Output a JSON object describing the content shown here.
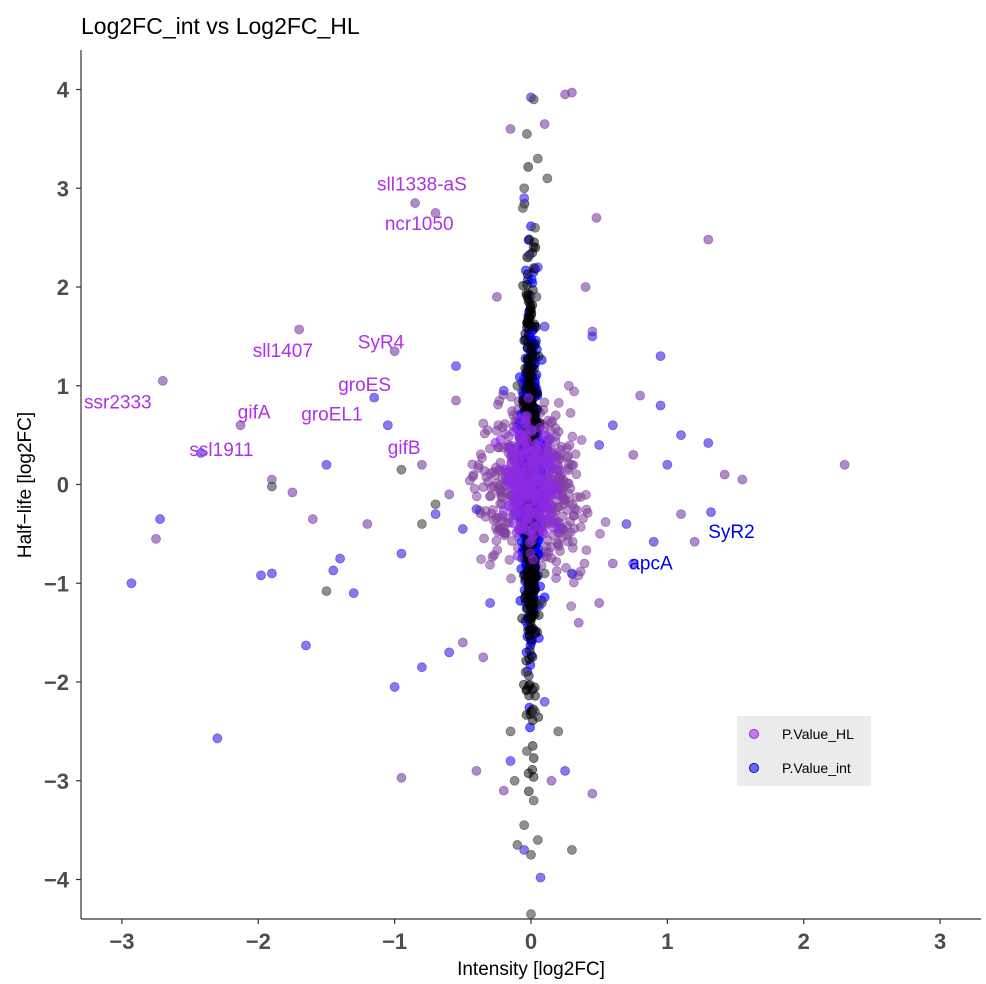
{
  "chart_data": {
    "type": "scatter",
    "title": "Log2FC_int vs Log2FC_HL",
    "xlabel": "Intensity [log2FC]",
    "ylabel": "Half−life [log2FC]",
    "xlim": [
      -3.3,
      3.3
    ],
    "ylim": [
      -4.4,
      4.4
    ],
    "x_ticks": [
      -3,
      -2,
      -1,
      0,
      1,
      2,
      3
    ],
    "x_tick_labels": [
      "−3",
      "−2",
      "−1",
      "0",
      "1",
      "2",
      "3"
    ],
    "y_ticks": [
      -4,
      -3,
      -2,
      -1,
      0,
      1,
      2,
      3,
      4
    ],
    "y_tick_labels": [
      "−4",
      "−3",
      "−2",
      "−1",
      "0",
      "1",
      "2",
      "3",
      "4"
    ],
    "grid": false,
    "legend_position": "bottom-right",
    "colors": {
      "P.Value_HL": "#a020f0",
      "P.Value_int": "#0000ff",
      "background": "#000000"
    },
    "series": [
      {
        "name": "P.Value_HL",
        "points": [
          [
            -2.7,
            1.05
          ],
          [
            -2.75,
            -0.55
          ],
          [
            -2.13,
            0.6
          ],
          [
            -1.7,
            1.57
          ],
          [
            -1.9,
            0.05
          ],
          [
            -1.75,
            -0.08
          ],
          [
            -1.6,
            -0.35
          ],
          [
            -1.0,
            1.35
          ],
          [
            -0.85,
            2.85
          ],
          [
            -0.7,
            2.75
          ],
          [
            -0.95,
            -2.97
          ],
          [
            -0.5,
            -1.6
          ],
          [
            -0.4,
            -2.9
          ],
          [
            0.25,
            3.95
          ],
          [
            0.3,
            3.97
          ],
          [
            0.48,
            2.7
          ],
          [
            0.45,
            1.55
          ],
          [
            0.4,
            2.0
          ],
          [
            1.3,
            2.48
          ],
          [
            2.3,
            0.2
          ],
          [
            1.2,
            -0.58
          ],
          [
            1.42,
            0.1
          ],
          [
            1.55,
            0.05
          ],
          [
            0.45,
            -3.13
          ],
          [
            0.15,
            -3.0
          ],
          [
            -0.2,
            -3.1
          ],
          [
            0.1,
            3.65
          ],
          [
            -0.15,
            3.6
          ],
          [
            -0.25,
            1.9
          ],
          [
            -0.35,
            -1.75
          ],
          [
            0.35,
            -1.4
          ],
          [
            0.5,
            -1.2
          ],
          [
            0.6,
            -0.8
          ],
          [
            0.8,
            0.9
          ],
          [
            1.1,
            -0.3
          ],
          [
            -0.55,
            0.85
          ],
          [
            -0.6,
            -0.1
          ],
          [
            -0.8,
            0.2
          ],
          [
            -1.2,
            -0.4
          ],
          [
            0.75,
            0.3
          ]
        ]
      },
      {
        "name": "P.Value_int",
        "points": [
          [
            -2.93,
            -1.0
          ],
          [
            -2.72,
            -0.35
          ],
          [
            -2.42,
            0.32
          ],
          [
            -2.3,
            -2.57
          ],
          [
            -1.98,
            -0.92
          ],
          [
            -1.9,
            -0.9
          ],
          [
            -1.65,
            -1.63
          ],
          [
            -1.5,
            0.2
          ],
          [
            -1.45,
            -0.87
          ],
          [
            -1.4,
            -0.75
          ],
          [
            -1.3,
            -1.1
          ],
          [
            -1.15,
            0.88
          ],
          [
            -1.05,
            0.6
          ],
          [
            -1.0,
            -2.05
          ],
          [
            -0.95,
            -0.7
          ],
          [
            -0.8,
            -1.85
          ],
          [
            -0.6,
            -1.7
          ],
          [
            -0.5,
            -0.45
          ],
          [
            -0.4,
            -0.25
          ],
          [
            -0.3,
            -1.2
          ],
          [
            -0.2,
            0.95
          ],
          [
            0.0,
            3.92
          ],
          [
            -0.05,
            2.9
          ],
          [
            0.05,
            2.2
          ],
          [
            0.1,
            1.6
          ],
          [
            0.95,
            1.3
          ],
          [
            0.95,
            0.8
          ],
          [
            1.1,
            0.5
          ],
          [
            1.3,
            0.42
          ],
          [
            1.32,
            -0.28
          ],
          [
            0.9,
            -0.58
          ],
          [
            0.7,
            -0.4
          ],
          [
            0.75,
            -0.8
          ],
          [
            0.5,
            0.4
          ],
          [
            0.3,
            -0.9
          ],
          [
            0.07,
            -3.98
          ],
          [
            -0.05,
            -3.7
          ],
          [
            0.25,
            -2.9
          ],
          [
            0.1,
            -2.2
          ],
          [
            -0.15,
            -2.8
          ],
          [
            0.45,
            1.5
          ],
          [
            -0.55,
            1.2
          ],
          [
            -0.7,
            -0.3
          ],
          [
            0.6,
            0.6
          ],
          [
            1.0,
            0.2
          ]
        ]
      },
      {
        "name": "",
        "points": [
          [
            0.02,
            3.9
          ],
          [
            -0.03,
            3.55
          ],
          [
            0.05,
            3.3
          ],
          [
            -0.05,
            3.0
          ],
          [
            0.03,
            2.6
          ],
          [
            -0.02,
            2.3
          ],
          [
            0.04,
            1.9
          ],
          [
            -0.04,
            -1.9
          ],
          [
            0.03,
            -2.3
          ],
          [
            -0.03,
            -2.7
          ],
          [
            0.02,
            -3.2
          ],
          [
            -0.05,
            -3.45
          ],
          [
            0.05,
            -3.6
          ],
          [
            -0.1,
            -3.65
          ],
          [
            0.3,
            -3.7
          ],
          [
            0.0,
            -3.75
          ],
          [
            -0.15,
            -2.5
          ],
          [
            0.2,
            -2.5
          ],
          [
            -0.8,
            -0.4
          ],
          [
            -0.7,
            -0.2
          ],
          [
            -1.9,
            -0.02
          ],
          [
            -1.5,
            -1.08
          ],
          [
            -0.95,
            0.15
          ],
          [
            0.1,
            -0.9
          ],
          [
            -0.1,
            1.0
          ],
          [
            0.08,
            -1.2
          ],
          [
            -0.06,
            2.8
          ],
          [
            0.12,
            3.1
          ],
          [
            -0.12,
            -3.0
          ],
          [
            0.0,
            -4.35
          ]
        ]
      }
    ],
    "annotations": [
      {
        "text": "sll1338-aS",
        "x": -0.8,
        "y": 3.05,
        "series": "P.Value_HL"
      },
      {
        "text": "ncr1050",
        "x": -0.82,
        "y": 2.65,
        "series": "P.Value_HL"
      },
      {
        "text": "SyR4",
        "x": -1.1,
        "y": 1.45,
        "series": "P.Value_HL"
      },
      {
        "text": "sll1407",
        "x": -1.82,
        "y": 1.36,
        "series": "P.Value_HL"
      },
      {
        "text": "groES",
        "x": -1.22,
        "y": 1.02,
        "series": "P.Value_HL"
      },
      {
        "text": "ssr2333",
        "x": -3.03,
        "y": 0.84,
        "series": "P.Value_HL"
      },
      {
        "text": "gifA",
        "x": -2.03,
        "y": 0.74,
        "series": "P.Value_HL"
      },
      {
        "text": "groEL1",
        "x": -1.46,
        "y": 0.72,
        "series": "P.Value_HL"
      },
      {
        "text": "gifB",
        "x": -0.93,
        "y": 0.38,
        "series": "P.Value_HL"
      },
      {
        "text": "ssl1911",
        "x": -2.27,
        "y": 0.36,
        "series": "P.Value_HL"
      },
      {
        "text": "SyR2",
        "x": 1.47,
        "y": -0.47,
        "series": "P.Value_int"
      },
      {
        "text": "apcA",
        "x": 0.88,
        "y": -0.79,
        "series": "P.Value_int"
      }
    ],
    "legend": [
      {
        "label": "P.Value_HL",
        "color": "#a020f0"
      },
      {
        "label": "P.Value_int",
        "color": "#0000ff"
      }
    ]
  }
}
